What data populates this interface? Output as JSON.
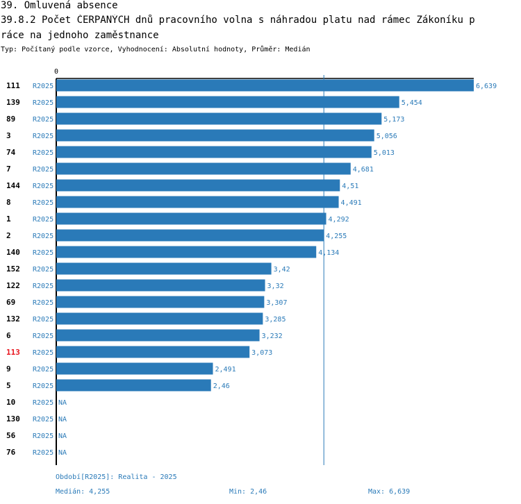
{
  "header": {
    "section": "39. Omluvená absence",
    "title_line1": "39.8.2 Počet ČERPANÝCH dnů pracovního volna s náhradou platu nad rámec Zákoníku p",
    "title_line2": "ráce na jednoho zaměstnance",
    "subtitle": "Typ: Počítaný podle vzorce, Vyhodnocení: Absolutní hodnoty, Průměr: Medián"
  },
  "colors": {
    "bar": "#2a7ab8",
    "text": "#000000",
    "highlight": "#e8141c",
    "label": "#2a7ab8"
  },
  "chart_data": {
    "type": "bar",
    "orientation": "horizontal",
    "axis_zero_label": "0",
    "xlim": [
      0,
      6.639
    ],
    "median": 4.255,
    "rows": [
      {
        "id": "111",
        "period": "R2025",
        "value": 6.639,
        "label": "6,639",
        "highlight": false
      },
      {
        "id": "139",
        "period": "R2025",
        "value": 5.454,
        "label": "5,454",
        "highlight": false
      },
      {
        "id": "89",
        "period": "R2025",
        "value": 5.173,
        "label": "5,173",
        "highlight": false
      },
      {
        "id": "3",
        "period": "R2025",
        "value": 5.056,
        "label": "5,056",
        "highlight": false
      },
      {
        "id": "74",
        "period": "R2025",
        "value": 5.013,
        "label": "5,013",
        "highlight": false
      },
      {
        "id": "7",
        "period": "R2025",
        "value": 4.681,
        "label": "4,681",
        "highlight": false
      },
      {
        "id": "144",
        "period": "R2025",
        "value": 4.51,
        "label": "4,51",
        "highlight": false
      },
      {
        "id": "8",
        "period": "R2025",
        "value": 4.491,
        "label": "4,491",
        "highlight": false
      },
      {
        "id": "1",
        "period": "R2025",
        "value": 4.292,
        "label": "4,292",
        "highlight": false
      },
      {
        "id": "2",
        "period": "R2025",
        "value": 4.255,
        "label": "4,255",
        "highlight": false
      },
      {
        "id": "140",
        "period": "R2025",
        "value": 4.134,
        "label": "4,134",
        "highlight": false
      },
      {
        "id": "152",
        "period": "R2025",
        "value": 3.42,
        "label": "3,42",
        "highlight": false
      },
      {
        "id": "122",
        "period": "R2025",
        "value": 3.32,
        "label": "3,32",
        "highlight": false
      },
      {
        "id": "69",
        "period": "R2025",
        "value": 3.307,
        "label": "3,307",
        "highlight": false
      },
      {
        "id": "132",
        "period": "R2025",
        "value": 3.285,
        "label": "3,285",
        "highlight": false
      },
      {
        "id": "6",
        "period": "R2025",
        "value": 3.232,
        "label": "3,232",
        "highlight": false
      },
      {
        "id": "113",
        "period": "R2025",
        "value": 3.073,
        "label": "3,073",
        "highlight": true
      },
      {
        "id": "9",
        "period": "R2025",
        "value": 2.491,
        "label": "2,491",
        "highlight": false
      },
      {
        "id": "5",
        "period": "R2025",
        "value": 2.46,
        "label": "2,46",
        "highlight": false
      },
      {
        "id": "10",
        "period": "R2025",
        "value": null,
        "label": "NA",
        "highlight": false
      },
      {
        "id": "130",
        "period": "R2025",
        "value": null,
        "label": "NA",
        "highlight": false
      },
      {
        "id": "56",
        "period": "R2025",
        "value": null,
        "label": "NA",
        "highlight": false
      },
      {
        "id": "76",
        "period": "R2025",
        "value": null,
        "label": "NA",
        "highlight": false
      }
    ]
  },
  "footer": {
    "period": "Období[R2025]: Realita - 2025",
    "median": "Medián: 4,255",
    "min": "Min: 2,46",
    "max": "Max: 6,639"
  }
}
